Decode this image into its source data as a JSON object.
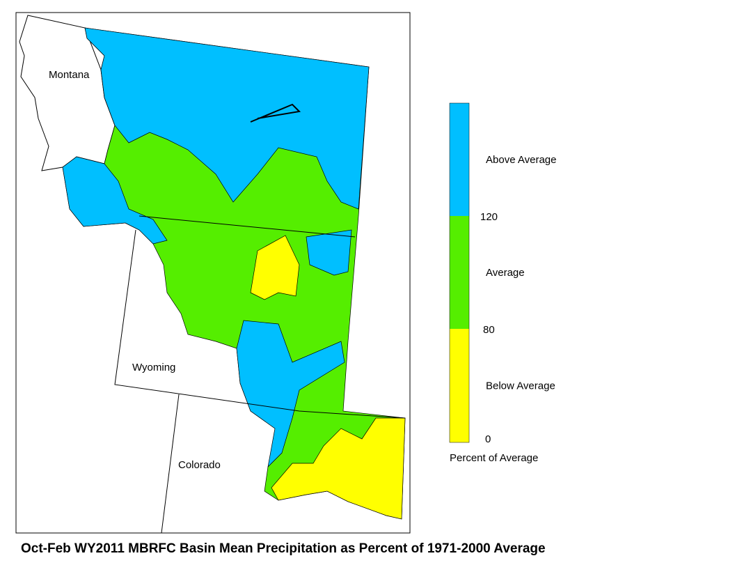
{
  "map": {
    "title": "Oct-Feb WY2011 MBRFC Basin Mean Precipitation as Percent of 1971-2000 Average",
    "state_labels": [
      "Montana",
      "Wyoming",
      "Colorado"
    ],
    "legend": {
      "title": "Percent of Average",
      "classes": [
        {
          "label": "Above Average",
          "color": "#00bfff"
        },
        {
          "label": "Average",
          "color": "#55ee00"
        },
        {
          "label": "Below Average",
          "color": "#ffff00"
        }
      ],
      "ticks": [
        120,
        80,
        0
      ]
    }
  }
}
